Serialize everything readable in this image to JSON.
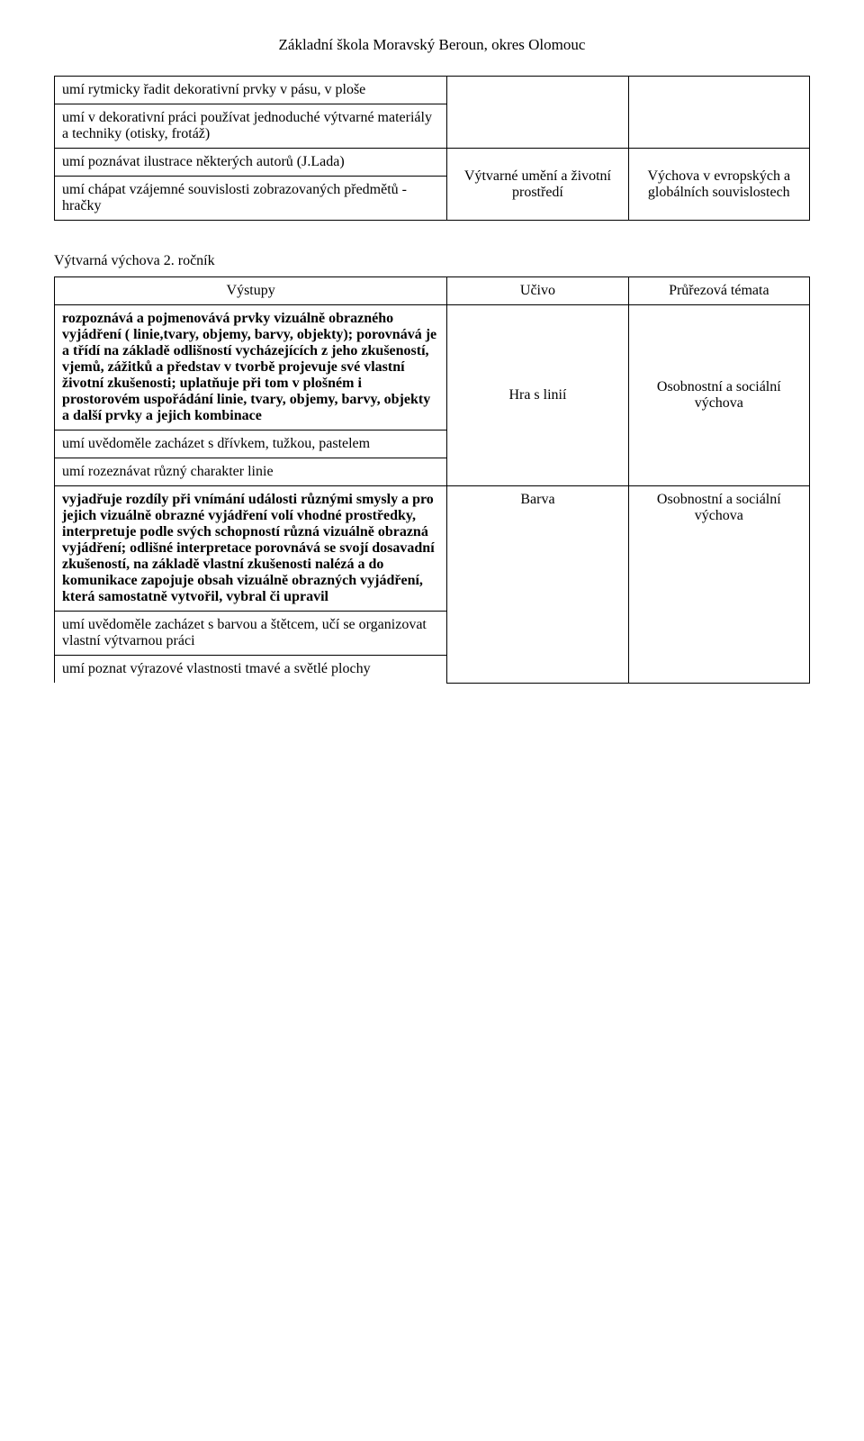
{
  "header": "Základní škola Moravský Beroun, okres Olomouc",
  "table1": {
    "rows": {
      "r1": "umí rytmicky řadit dekorativní prvky v pásu, v ploše",
      "r2": "umí v dekorativní práci používat jednoduché výtvarné materiály a techniky (otisky, frotáž)",
      "r3": "umí poznávat ilustrace některých autorů (J.Lada)",
      "r4": "umí chápat vzájemné souvislosti zobrazovaných předmětů - hračky"
    },
    "colB": "Výtvarné umění a životní prostředí",
    "colC": "Výchova v evropských a globálních souvislostech"
  },
  "section2": {
    "title": "Výtvarná výchova 2. ročník",
    "head": {
      "a": "Výstupy",
      "b": "Učivo",
      "c": "Průřezová témata"
    },
    "rows": {
      "r1": "rozpoznává a pojmenovává prvky vizuálně obrazného vyjádření ( linie,tvary, objemy, barvy, objekty); porovnává je a třídí na základě odlišností vycházejících z jeho zkušeností, vjemů, zážitků a představ v tvorbě projevuje své vlastní životní zkušenosti; uplatňuje při tom v plošném i prostorovém uspořádání linie, tvary, objemy, barvy, objekty a další prvky a jejich kombinace",
      "r2": "umí uvědoměle zacházet s dřívkem, tužkou, pastelem",
      "r3": "umí rozeznávat různý charakter linie",
      "r4": "vyjadřuje rozdíly při vnímání události různými smysly a pro jejich vizuálně obrazné vyjádření volí vhodné prostředky, interpretuje podle svých schopností různá vizuálně obrazná vyjádření; odlišné interpretace porovnává se svojí dosavadní zkušeností, na základě vlastní zkušenosti nalézá a do komunikace zapojuje obsah vizuálně obrazných vyjádření, která samostatně vytvořil, vybral či upravil",
      "r5": "umí uvědoměle zacházet s barvou a štětcem, učí se organizovat vlastní výtvarnou práci",
      "r6": "umí poznat výrazové vlastnosti tmavé a světlé plochy"
    },
    "colB": {
      "b1": "Hra s linií",
      "b2": "Barva"
    },
    "colC": {
      "c1": "Osobnostní a sociální výchova",
      "c2": "Osobnostní a sociální výchova"
    }
  }
}
